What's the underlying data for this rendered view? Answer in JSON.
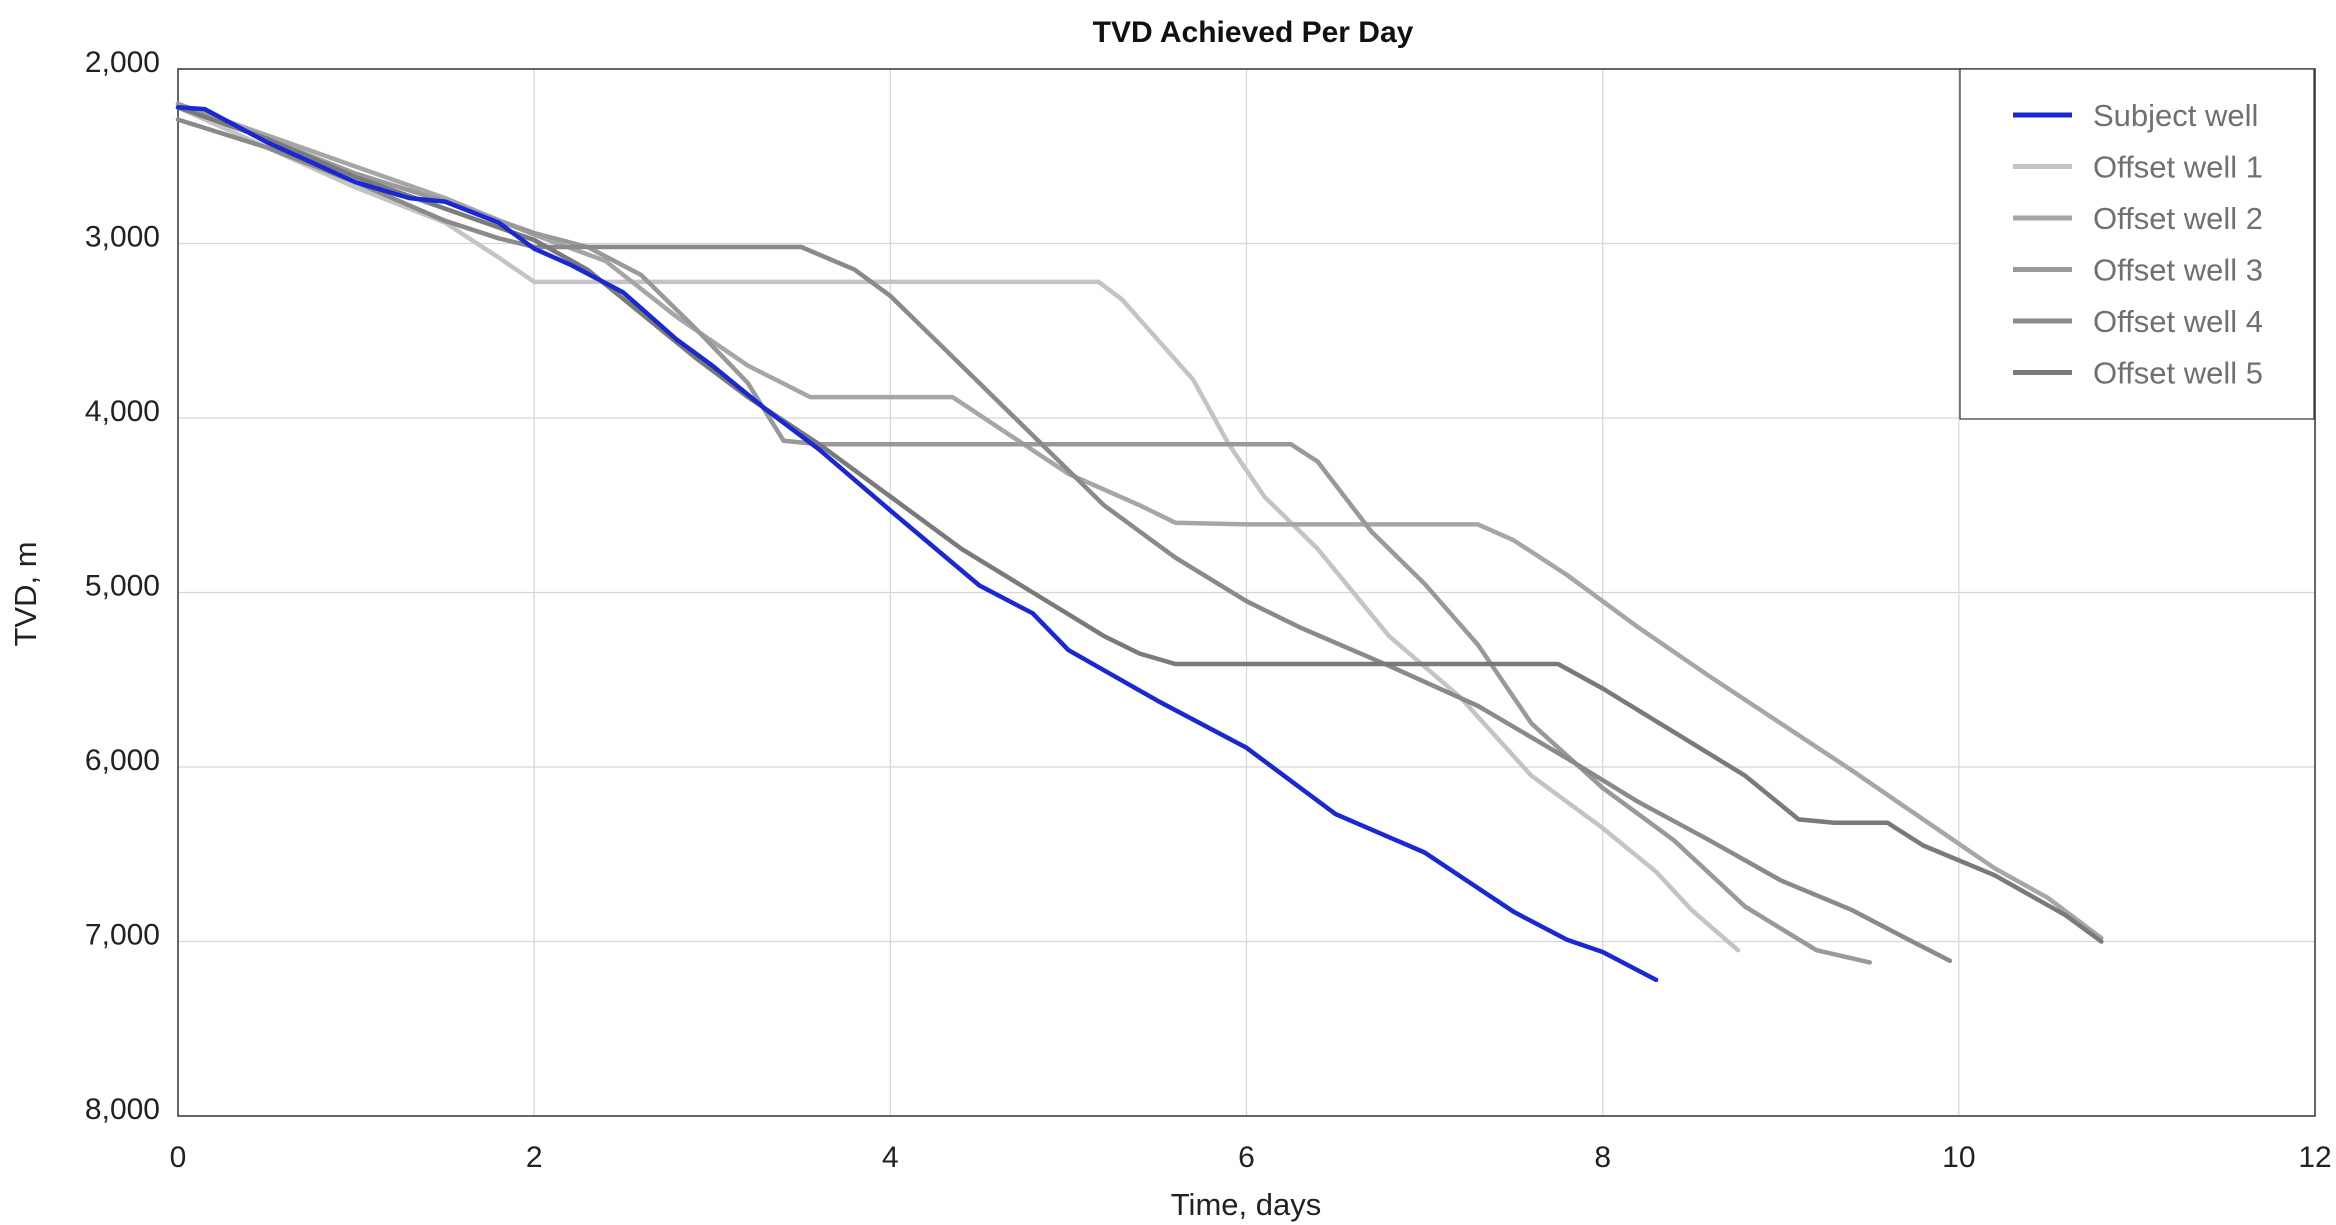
{
  "chart_data": {
    "type": "line",
    "title": "TVD Achieved Per Day",
    "xlabel": "Time, days",
    "ylabel": "TVD, m",
    "xlim": [
      0,
      12
    ],
    "ylim": [
      2000,
      8000
    ],
    "y_inverted": true,
    "grid": true,
    "legend_position": "top-right",
    "xticks": [
      "0",
      "2",
      "4",
      "6",
      "8",
      "10",
      "12"
    ],
    "yticks": [
      "2,000",
      "3,000",
      "4,000",
      "5,000",
      "6,000",
      "7,000",
      "8,000"
    ],
    "series": [
      {
        "name": "Subject well",
        "color": "#1a28d4",
        "points": [
          [
            0,
            2220
          ],
          [
            0.15,
            2230
          ],
          [
            0.5,
            2420
          ],
          [
            1.0,
            2650
          ],
          [
            1.3,
            2740
          ],
          [
            1.5,
            2760
          ],
          [
            1.8,
            2880
          ],
          [
            2.0,
            3030
          ],
          [
            2.2,
            3120
          ],
          [
            2.5,
            3280
          ],
          [
            2.8,
            3550
          ],
          [
            3.0,
            3700
          ],
          [
            3.3,
            3950
          ],
          [
            3.6,
            4180
          ],
          [
            4.0,
            4530
          ],
          [
            4.5,
            4960
          ],
          [
            4.8,
            5120
          ],
          [
            5.0,
            5330
          ],
          [
            5.5,
            5620
          ],
          [
            6.0,
            5890
          ],
          [
            6.5,
            6270
          ],
          [
            7.0,
            6490
          ],
          [
            7.5,
            6830
          ],
          [
            7.8,
            6990
          ],
          [
            8.0,
            7060
          ],
          [
            8.3,
            7220
          ]
        ]
      },
      {
        "name": "Offset well 1",
        "color": "#c4c4c4",
        "points": [
          [
            0,
            2220
          ],
          [
            0.5,
            2450
          ],
          [
            1.0,
            2680
          ],
          [
            1.5,
            2880
          ],
          [
            1.8,
            3080
          ],
          [
            2.0,
            3220
          ],
          [
            3.0,
            3220
          ],
          [
            4.0,
            3220
          ],
          [
            5.17,
            3220
          ],
          [
            5.3,
            3320
          ],
          [
            5.5,
            3550
          ],
          [
            5.7,
            3780
          ],
          [
            5.9,
            4150
          ],
          [
            6.1,
            4450
          ],
          [
            6.4,
            4750
          ],
          [
            6.8,
            5250
          ],
          [
            7.2,
            5600
          ],
          [
            7.6,
            6050
          ],
          [
            8.0,
            6350
          ],
          [
            8.3,
            6600
          ],
          [
            8.5,
            6820
          ],
          [
            8.76,
            7050
          ]
        ]
      },
      {
        "name": "Offset well 2",
        "color": "#a6a6a6",
        "points": [
          [
            0,
            2200
          ],
          [
            0.5,
            2380
          ],
          [
            1.0,
            2560
          ],
          [
            1.5,
            2740
          ],
          [
            2.0,
            2950
          ],
          [
            2.4,
            3100
          ],
          [
            2.8,
            3420
          ],
          [
            3.2,
            3700
          ],
          [
            3.55,
            3880
          ],
          [
            4.0,
            3880
          ],
          [
            4.35,
            3880
          ],
          [
            4.6,
            4050
          ],
          [
            5.0,
            4320
          ],
          [
            5.4,
            4500
          ],
          [
            5.6,
            4600
          ],
          [
            6.0,
            4610
          ],
          [
            7.0,
            4610
          ],
          [
            7.3,
            4610
          ],
          [
            7.5,
            4700
          ],
          [
            7.8,
            4900
          ],
          [
            8.2,
            5200
          ],
          [
            8.6,
            5480
          ],
          [
            9.0,
            5750
          ],
          [
            9.4,
            6020
          ],
          [
            9.8,
            6300
          ],
          [
            10.2,
            6580
          ],
          [
            10.5,
            6750
          ],
          [
            10.8,
            6980
          ]
        ]
      },
      {
        "name": "Offset well 3",
        "color": "#999999",
        "points": [
          [
            0,
            2200
          ],
          [
            0.5,
            2400
          ],
          [
            1.0,
            2600
          ],
          [
            1.5,
            2760
          ],
          [
            2.0,
            2940
          ],
          [
            2.3,
            3020
          ],
          [
            2.6,
            3180
          ],
          [
            2.9,
            3480
          ],
          [
            3.2,
            3800
          ],
          [
            3.4,
            4130
          ],
          [
            3.6,
            4150
          ],
          [
            4.5,
            4150
          ],
          [
            5.5,
            4150
          ],
          [
            6.25,
            4150
          ],
          [
            6.4,
            4250
          ],
          [
            6.7,
            4650
          ],
          [
            7.0,
            4950
          ],
          [
            7.3,
            5300
          ],
          [
            7.6,
            5750
          ],
          [
            8.0,
            6120
          ],
          [
            8.4,
            6420
          ],
          [
            8.8,
            6800
          ],
          [
            9.2,
            7050
          ],
          [
            9.5,
            7120
          ]
        ]
      },
      {
        "name": "Offset well 4",
        "color": "#8a8a8a",
        "points": [
          [
            0,
            2290
          ],
          [
            0.5,
            2450
          ],
          [
            1.0,
            2650
          ],
          [
            1.5,
            2870
          ],
          [
            1.8,
            2970
          ],
          [
            2.0,
            3020
          ],
          [
            2.5,
            3020
          ],
          [
            3.0,
            3020
          ],
          [
            3.5,
            3020
          ],
          [
            3.8,
            3150
          ],
          [
            4.0,
            3300
          ],
          [
            4.3,
            3600
          ],
          [
            4.8,
            4100
          ],
          [
            5.2,
            4500
          ],
          [
            5.6,
            4800
          ],
          [
            6.0,
            5050
          ],
          [
            6.3,
            5200
          ],
          [
            6.8,
            5420
          ],
          [
            7.3,
            5650
          ],
          [
            7.8,
            5950
          ],
          [
            8.2,
            6200
          ],
          [
            8.6,
            6420
          ],
          [
            9.0,
            6650
          ],
          [
            9.4,
            6820
          ],
          [
            9.7,
            6980
          ],
          [
            9.95,
            7110
          ]
        ]
      },
      {
        "name": "Offset well 5",
        "color": "#7a7a7a",
        "points": [
          [
            0,
            2220
          ],
          [
            0.5,
            2400
          ],
          [
            1.0,
            2620
          ],
          [
            1.5,
            2800
          ],
          [
            2.0,
            2980
          ],
          [
            2.3,
            3150
          ],
          [
            2.6,
            3400
          ],
          [
            2.9,
            3650
          ],
          [
            3.2,
            3880
          ],
          [
            3.6,
            4150
          ],
          [
            4.0,
            4450
          ],
          [
            4.4,
            4750
          ],
          [
            4.8,
            5000
          ],
          [
            5.2,
            5250
          ],
          [
            5.4,
            5350
          ],
          [
            5.6,
            5410
          ],
          [
            6.5,
            5410
          ],
          [
            7.5,
            5410
          ],
          [
            7.75,
            5410
          ],
          [
            8.0,
            5550
          ],
          [
            8.4,
            5800
          ],
          [
            8.8,
            6050
          ],
          [
            9.1,
            6300
          ],
          [
            9.3,
            6320
          ],
          [
            9.6,
            6320
          ],
          [
            9.8,
            6450
          ],
          [
            10.2,
            6620
          ],
          [
            10.6,
            6850
          ],
          [
            10.8,
            7000
          ]
        ]
      }
    ]
  }
}
